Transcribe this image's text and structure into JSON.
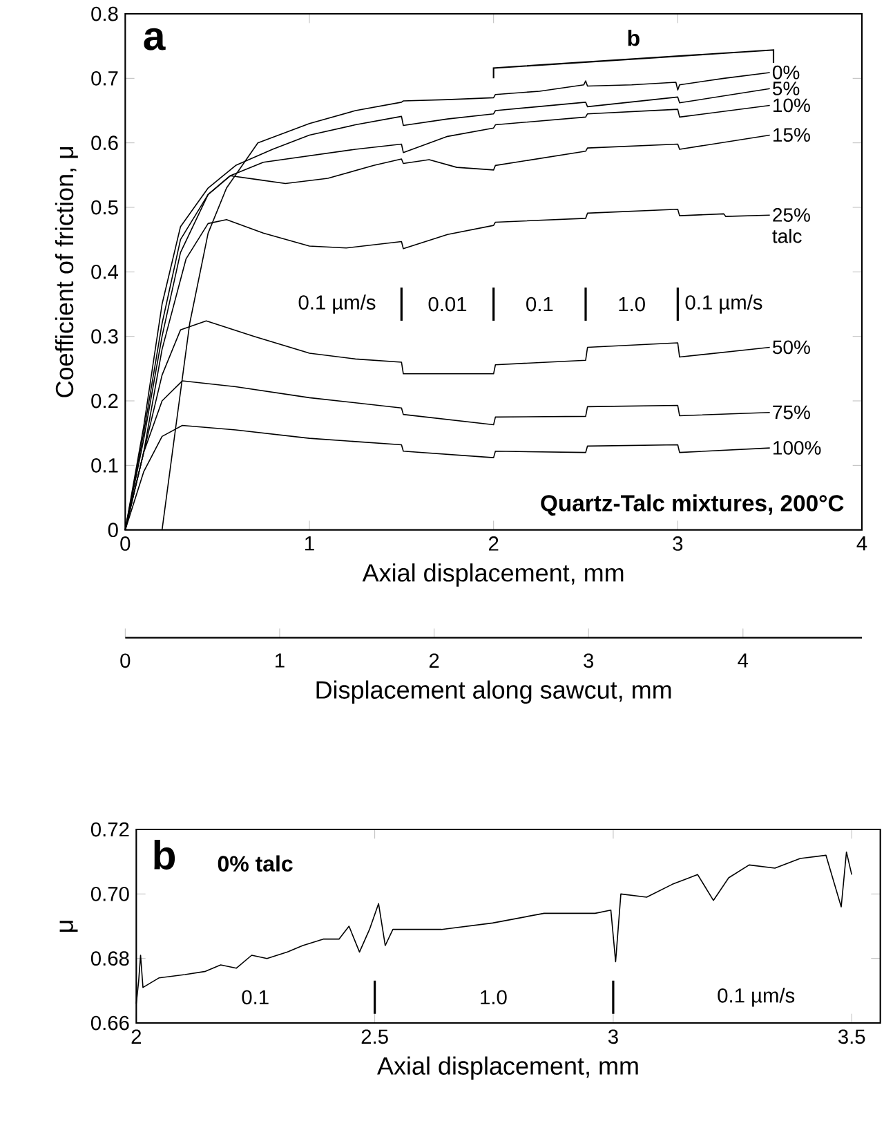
{
  "chart_data": [
    {
      "type": "line",
      "xlabel": "Axial displacement, mm",
      "ylabel": "Coefficient of friction, μ",
      "xlim": [
        0,
        4
      ],
      "xticks": [
        0,
        1,
        2,
        3,
        4
      ],
      "ylim": [
        0,
        0.8
      ],
      "yticks": [
        0,
        0.1,
        0.2,
        0.3,
        0.4,
        0.5,
        0.6,
        0.7,
        0.8
      ],
      "x2lim": [
        0,
        4.77
      ],
      "x2ticks": [
        0,
        1,
        2,
        3,
        4
      ],
      "x2label": "Displacement along sawcut, mm",
      "series": [
        {
          "name": "0%",
          "color": "#000000",
          "x": [
            0.2,
            0.27,
            0.35,
            0.45,
            0.55,
            0.72,
            1.0,
            1.25,
            1.5,
            1.51,
            1.75,
            2.0,
            2.01,
            2.25,
            2.49,
            2.5,
            2.51,
            2.75,
            2.99,
            3.0,
            3.01,
            3.25,
            3.5
          ],
          "values": [
            0,
            0.15,
            0.32,
            0.46,
            0.53,
            0.6,
            0.63,
            0.65,
            0.663,
            0.665,
            0.667,
            0.67,
            0.675,
            0.68,
            0.69,
            0.696,
            0.688,
            0.69,
            0.694,
            0.682,
            0.69,
            0.7,
            0.709
          ]
        },
        {
          "name": "5%",
          "color": "#000000",
          "x": [
            0,
            0.1,
            0.2,
            0.3,
            0.45,
            0.6,
            0.8,
            1.0,
            1.25,
            1.5,
            1.51,
            1.75,
            2.0,
            2.01,
            2.5,
            2.51,
            3.0,
            3.01,
            3.5
          ],
          "values": [
            0,
            0.16,
            0.35,
            0.47,
            0.53,
            0.565,
            0.59,
            0.612,
            0.628,
            0.641,
            0.627,
            0.637,
            0.645,
            0.65,
            0.663,
            0.656,
            0.671,
            0.662,
            0.684
          ]
        },
        {
          "name": "10%",
          "color": "#000000",
          "x": [
            0,
            0.1,
            0.2,
            0.3,
            0.45,
            0.57,
            0.75,
            1.0,
            1.25,
            1.5,
            1.51,
            1.75,
            2.0,
            2.01,
            2.5,
            2.51,
            3.0,
            3.01,
            3.5
          ],
          "values": [
            0,
            0.15,
            0.32,
            0.45,
            0.52,
            0.549,
            0.57,
            0.58,
            0.59,
            0.598,
            0.585,
            0.61,
            0.623,
            0.628,
            0.64,
            0.645,
            0.652,
            0.64,
            0.658
          ]
        },
        {
          "name": "15%",
          "color": "#000000",
          "x": [
            0,
            0.1,
            0.2,
            0.3,
            0.45,
            0.57,
            0.72,
            0.87,
            1.1,
            1.35,
            1.5,
            1.51,
            1.65,
            1.8,
            2.0,
            2.01,
            2.5,
            2.51,
            3.0,
            3.01,
            3.5
          ],
          "values": [
            0,
            0.14,
            0.3,
            0.43,
            0.52,
            0.549,
            0.543,
            0.537,
            0.545,
            0.565,
            0.575,
            0.568,
            0.574,
            0.562,
            0.558,
            0.565,
            0.587,
            0.592,
            0.598,
            0.59,
            0.612
          ]
        },
        {
          "name": "25% talc",
          "color": "#000000",
          "x": [
            0,
            0.1,
            0.2,
            0.33,
            0.45,
            0.55,
            0.75,
            1.0,
            1.2,
            1.5,
            1.51,
            1.75,
            2.0,
            2.01,
            2.5,
            2.51,
            3.0,
            3.01,
            3.25,
            3.26,
            3.5
          ],
          "values": [
            0,
            0.12,
            0.28,
            0.42,
            0.475,
            0.481,
            0.46,
            0.44,
            0.437,
            0.447,
            0.436,
            0.458,
            0.472,
            0.477,
            0.483,
            0.491,
            0.497,
            0.487,
            0.49,
            0.486,
            0.488
          ]
        },
        {
          "name": "50%",
          "color": "#000000",
          "x": [
            0,
            0.1,
            0.2,
            0.3,
            0.44,
            0.7,
            1.0,
            1.25,
            1.5,
            1.51,
            2.0,
            2.01,
            2.5,
            2.51,
            3.0,
            3.01,
            3.5
          ],
          "values": [
            0,
            0.12,
            0.24,
            0.31,
            0.324,
            0.3,
            0.274,
            0.265,
            0.26,
            0.242,
            0.242,
            0.256,
            0.263,
            0.283,
            0.29,
            0.268,
            0.283
          ]
        },
        {
          "name": "75%",
          "color": "#000000",
          "x": [
            0,
            0.1,
            0.2,
            0.31,
            0.6,
            1.0,
            1.5,
            1.51,
            2.0,
            2.01,
            2.5,
            2.51,
            3.0,
            3.01,
            3.5
          ],
          "values": [
            0,
            0.12,
            0.2,
            0.231,
            0.222,
            0.205,
            0.189,
            0.179,
            0.163,
            0.175,
            0.176,
            0.191,
            0.193,
            0.177,
            0.182
          ]
        },
        {
          "name": "100%",
          "color": "#000000",
          "x": [
            0,
            0.1,
            0.2,
            0.31,
            0.6,
            1.0,
            1.5,
            1.51,
            2.0,
            2.01,
            2.5,
            2.51,
            3.0,
            3.01,
            3.5
          ],
          "values": [
            0,
            0.09,
            0.145,
            0.162,
            0.155,
            0.142,
            0.132,
            0.122,
            0.112,
            0.122,
            0.12,
            0.13,
            0.132,
            0.12,
            0.127
          ]
        }
      ],
      "annotations": [
        "a",
        "Quartz-Talc mixtures, 200°C",
        "0.1 µm/s",
        "0.01",
        "0.1",
        "1.0",
        "0.1 µm/s",
        "b"
      ]
    },
    {
      "type": "line",
      "xlabel": "Axial displacement, mm",
      "ylabel": "μ",
      "xlim": [
        2,
        3.56
      ],
      "xticks": [
        2,
        2.5,
        3,
        3.5
      ],
      "ylim": [
        0.66,
        0.72
      ],
      "yticks": [
        0.66,
        0.68,
        {
          "value": 0.7,
          "label": "0.70"
        },
        0.72
      ],
      "series": [
        {
          "color": "#000000",
          "x": [
            2.0,
            2.005,
            2.009,
            2.014,
            2.048,
            2.102,
            2.145,
            2.177,
            2.21,
            2.242,
            2.274,
            2.317,
            2.349,
            2.392,
            2.425,
            2.446,
            2.468,
            2.489,
            2.508,
            2.522,
            2.538,
            2.554,
            2.64,
            2.747,
            2.855,
            2.962,
            2.995,
            3.005,
            3.016,
            3.07,
            3.124,
            3.177,
            3.21,
            3.242,
            3.285,
            3.339,
            3.392,
            3.446,
            3.478,
            3.489,
            3.5
          ],
          "values": [
            0.666,
            0.673,
            0.681,
            0.671,
            0.674,
            0.675,
            0.676,
            0.678,
            0.677,
            0.681,
            0.68,
            0.682,
            0.684,
            0.686,
            0.686,
            0.69,
            0.682,
            0.689,
            0.697,
            0.684,
            0.689,
            0.689,
            0.689,
            0.691,
            0.694,
            0.694,
            0.695,
            0.679,
            0.7,
            0.699,
            0.703,
            0.706,
            0.698,
            0.705,
            0.709,
            0.708,
            0.711,
            0.712,
            0.696,
            0.713,
            0.706
          ]
        }
      ],
      "annotations": [
        "b",
        "0% talc",
        "0.1",
        "1.0",
        "0.1 µm/s"
      ]
    }
  ]
}
